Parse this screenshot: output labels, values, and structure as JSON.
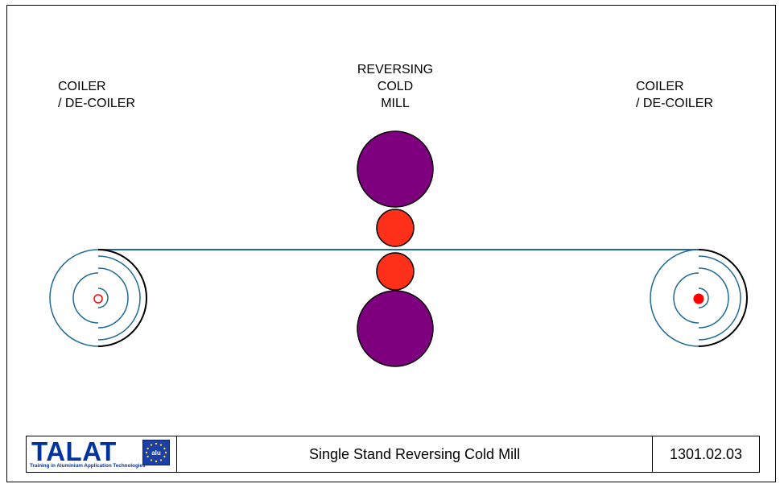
{
  "labels": {
    "left_coiler": [
      "COILER",
      "/ DE-COILER"
    ],
    "mill": [
      "REVERSING",
      "COLD",
      "MILL"
    ],
    "right_coiler": [
      "COILER",
      "/ DE-COILER"
    ]
  },
  "footer": {
    "logo_text": "TALAT",
    "logo_badge": "alu",
    "logo_subtitle": "Training in Aluminium Application Technologies",
    "title": "Single Stand Reversing Cold Mill",
    "code": "1301.02.03"
  },
  "colors": {
    "strip": "#1f6a96",
    "backup_roll": "#7f007f",
    "work_roll": "#ff3019",
    "coil_center": "#ff0000",
    "outline": "#000000",
    "logo_blue": "#0033a0"
  }
}
